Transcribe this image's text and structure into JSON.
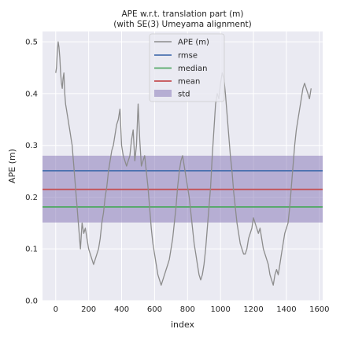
{
  "chart_data": {
    "type": "line",
    "title_lines": [
      "APE w.r.t. translation part (m)",
      "(with SE(3) Umeyama alignment)"
    ],
    "xlabel": "index",
    "ylabel": "APE (m)",
    "xlim": [
      -80,
      1620
    ],
    "ylim": [
      0.0,
      0.52
    ],
    "x_ticks": [
      0,
      200,
      400,
      600,
      800,
      1000,
      1200,
      1400,
      1600
    ],
    "y_ticks": [
      0.0,
      0.1,
      0.2,
      0.3,
      0.4,
      0.5
    ],
    "grid": true,
    "legend_position": "top-center",
    "legend": [
      {
        "label": "APE (m)",
        "kind": "line",
        "color": "#8c8c8c"
      },
      {
        "label": "rmse",
        "kind": "line",
        "color": "#4c72b0"
      },
      {
        "label": "median",
        "kind": "line",
        "color": "#55a868"
      },
      {
        "label": "mean",
        "kind": "line",
        "color": "#c44e52"
      },
      {
        "label": "std",
        "kind": "patch",
        "color": "#8172b3"
      }
    ],
    "stats": {
      "rmse": 0.251,
      "median": 0.181,
      "mean": 0.215,
      "std_band": [
        0.151,
        0.28
      ]
    },
    "series": [
      {
        "name": "APE (m)",
        "color": "#8c8c8c",
        "x": [
          0,
          5,
          10,
          15,
          20,
          25,
          30,
          35,
          40,
          45,
          50,
          55,
          60,
          65,
          70,
          75,
          80,
          85,
          90,
          95,
          100,
          105,
          110,
          115,
          120,
          125,
          130,
          135,
          140,
          145,
          150,
          160,
          170,
          180,
          190,
          200,
          210,
          220,
          230,
          240,
          250,
          260,
          270,
          280,
          290,
          300,
          310,
          320,
          330,
          340,
          350,
          360,
          370,
          380,
          390,
          400,
          410,
          420,
          430,
          440,
          450,
          460,
          470,
          480,
          490,
          500,
          510,
          520,
          530,
          540,
          550,
          560,
          570,
          580,
          590,
          600,
          610,
          620,
          630,
          640,
          650,
          660,
          670,
          680,
          690,
          700,
          710,
          720,
          730,
          740,
          750,
          760,
          770,
          780,
          790,
          800,
          810,
          820,
          830,
          840,
          850,
          860,
          870,
          880,
          890,
          900,
          910,
          920,
          930,
          940,
          950,
          960,
          970,
          980,
          990,
          1000,
          1010,
          1020,
          1030,
          1040,
          1050,
          1060,
          1070,
          1080,
          1090,
          1100,
          1110,
          1120,
          1130,
          1140,
          1150,
          1160,
          1170,
          1180,
          1190,
          1200,
          1210,
          1220,
          1230,
          1240,
          1250,
          1260,
          1270,
          1280,
          1290,
          1300,
          1310,
          1320,
          1330,
          1340,
          1350,
          1360,
          1370,
          1380,
          1390,
          1400,
          1410,
          1420,
          1430,
          1440,
          1450,
          1460,
          1470,
          1480,
          1490,
          1500,
          1510,
          1520,
          1530,
          1540,
          1550
        ],
        "values": [
          0.44,
          0.45,
          0.48,
          0.5,
          0.49,
          0.47,
          0.44,
          0.42,
          0.41,
          0.43,
          0.44,
          0.4,
          0.38,
          0.37,
          0.36,
          0.35,
          0.34,
          0.33,
          0.32,
          0.31,
          0.3,
          0.28,
          0.26,
          0.24,
          0.22,
          0.2,
          0.18,
          0.16,
          0.14,
          0.12,
          0.1,
          0.15,
          0.13,
          0.14,
          0.12,
          0.1,
          0.09,
          0.08,
          0.07,
          0.08,
          0.09,
          0.1,
          0.12,
          0.15,
          0.17,
          0.2,
          0.22,
          0.25,
          0.27,
          0.29,
          0.3,
          0.32,
          0.34,
          0.35,
          0.37,
          0.3,
          0.28,
          0.27,
          0.26,
          0.27,
          0.28,
          0.31,
          0.33,
          0.27,
          0.3,
          0.38,
          0.31,
          0.26,
          0.27,
          0.28,
          0.25,
          0.22,
          0.18,
          0.14,
          0.11,
          0.09,
          0.07,
          0.05,
          0.04,
          0.03,
          0.04,
          0.05,
          0.06,
          0.07,
          0.08,
          0.1,
          0.12,
          0.15,
          0.18,
          0.22,
          0.25,
          0.27,
          0.28,
          0.26,
          0.24,
          0.22,
          0.2,
          0.17,
          0.14,
          0.11,
          0.09,
          0.07,
          0.05,
          0.04,
          0.05,
          0.07,
          0.1,
          0.14,
          0.18,
          0.22,
          0.28,
          0.33,
          0.38,
          0.4,
          0.39,
          0.42,
          0.44,
          0.43,
          0.4,
          0.36,
          0.32,
          0.28,
          0.25,
          0.21,
          0.18,
          0.15,
          0.13,
          0.11,
          0.1,
          0.09,
          0.09,
          0.1,
          0.12,
          0.13,
          0.14,
          0.16,
          0.15,
          0.14,
          0.13,
          0.14,
          0.12,
          0.1,
          0.09,
          0.08,
          0.07,
          0.05,
          0.04,
          0.03,
          0.05,
          0.06,
          0.05,
          0.07,
          0.09,
          0.11,
          0.13,
          0.14,
          0.15,
          0.18,
          0.22,
          0.26,
          0.3,
          0.33,
          0.35,
          0.37,
          0.39,
          0.41,
          0.42,
          0.41,
          0.4,
          0.39,
          0.41
        ]
      }
    ]
  }
}
